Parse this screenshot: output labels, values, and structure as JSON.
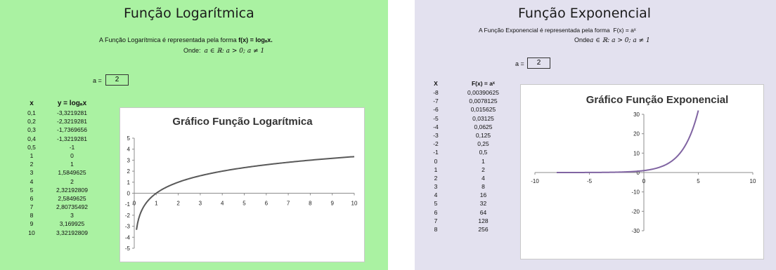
{
  "log": {
    "title": "Função Logarítmica",
    "desc_prefix": "A Função Logarítmica é representada pela forma ",
    "desc_formula": "f(x) = logₐx.",
    "where_label": "Onde:",
    "where_math": "a ∈ ℝ: a > 0; a ≠ 1",
    "a_label": "a =",
    "a_value": "2",
    "col_x": "x",
    "col_y": "y = logₐx",
    "rows": [
      [
        "0,1",
        "-3,3219281"
      ],
      [
        "0,2",
        "-2,3219281"
      ],
      [
        "0,3",
        "-1,7369656"
      ],
      [
        "0,4",
        "-1,3219281"
      ],
      [
        "0,5",
        "-1"
      ],
      [
        "1",
        "0"
      ],
      [
        "2",
        "1"
      ],
      [
        "3",
        "1,5849625"
      ],
      [
        "4",
        "2"
      ],
      [
        "5",
        "2,32192809"
      ],
      [
        "6",
        "2,5849625"
      ],
      [
        "7",
        "2,80735492"
      ],
      [
        "8",
        "3"
      ],
      [
        "9",
        "3,169925"
      ],
      [
        "10",
        "3,32192809"
      ]
    ]
  },
  "exp": {
    "title": "Função Exponencial",
    "desc_prefix": "A Função Exponencial é representada pela forma",
    "desc_formula": "F(x) = aˣ",
    "where_label": "Onde",
    "where_math": "a ∈ ℝ: a > 0; a ≠ 1",
    "a_label": "a =",
    "a_value": "2",
    "col_x": "X",
    "col_y": "F(x) = aˣ",
    "rows": [
      [
        "-8",
        "0,00390625"
      ],
      [
        "-7",
        "0,0078125"
      ],
      [
        "-6",
        "0,015625"
      ],
      [
        "-5",
        "0,03125"
      ],
      [
        "-4",
        "0,0625"
      ],
      [
        "-3",
        "0,125"
      ],
      [
        "-2",
        "0,25"
      ],
      [
        "-1",
        "0,5"
      ],
      [
        "0",
        "1"
      ],
      [
        "1",
        "2"
      ],
      [
        "2",
        "4"
      ],
      [
        "3",
        "8"
      ],
      [
        "4",
        "16"
      ],
      [
        "5",
        "32"
      ],
      [
        "6",
        "64"
      ],
      [
        "7",
        "128"
      ],
      [
        "8",
        "256"
      ]
    ]
  },
  "chart_data": [
    {
      "type": "line",
      "title": "Gráfico Função Logarítmica",
      "xlabel": "",
      "ylabel": "",
      "xlim": [
        0,
        10
      ],
      "ylim": [
        -5,
        5
      ],
      "x_ticks": [
        "0",
        "1",
        "2",
        "3",
        "4",
        "5",
        "6",
        "7",
        "8",
        "9",
        "10"
      ],
      "y_ticks": [
        "5",
        "4",
        "3",
        "2",
        "1",
        "0",
        "-1",
        "-2",
        "-3",
        "-4",
        "-5"
      ],
      "series": [
        {
          "color": "#595959",
          "x": [
            0.1,
            0.2,
            0.3,
            0.4,
            0.5,
            1,
            2,
            3,
            4,
            5,
            6,
            7,
            8,
            9,
            10
          ],
          "y": [
            -3.3219281,
            -2.3219281,
            -1.7369656,
            -1.3219281,
            -1,
            0,
            1,
            1.5849625,
            2,
            2.32192809,
            2.5849625,
            2.80735492,
            3,
            3.169925,
            3.32192809
          ]
        }
      ],
      "grid": false
    },
    {
      "type": "line",
      "title": "Gráfico Função Exponencial",
      "xlabel": "",
      "ylabel": "",
      "xlim": [
        -10,
        10
      ],
      "ylim": [
        -30,
        30
      ],
      "x_ticks": [
        "-10",
        "-5",
        "0",
        "5",
        "10"
      ],
      "y_ticks": [
        "30",
        "20",
        "10",
        "0",
        "-10",
        "-20",
        "-30"
      ],
      "series": [
        {
          "color": "#8064a2",
          "x": [
            -8,
            -7,
            -6,
            -5,
            -4,
            -3,
            -2,
            -1,
            0,
            1,
            2,
            3,
            4,
            5
          ],
          "y": [
            0.00390625,
            0.0078125,
            0.015625,
            0.03125,
            0.0625,
            0.125,
            0.25,
            0.5,
            1,
            2,
            4,
            8,
            16,
            32
          ]
        }
      ],
      "grid": false
    }
  ]
}
